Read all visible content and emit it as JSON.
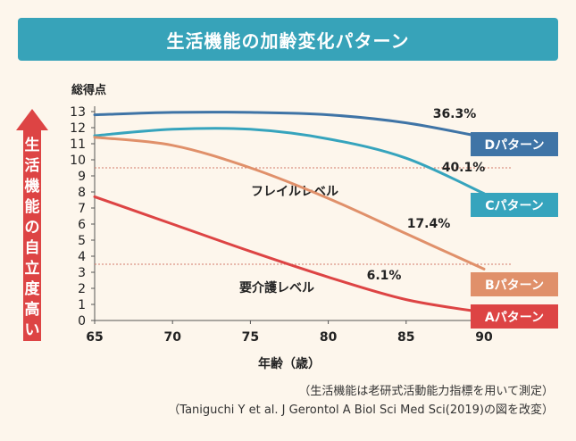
{
  "title": "生活機能の加齢変化パターン",
  "notes": [
    "（生活機能は老研式活動能力指標を用いて測定）",
    "（Taniguchi Y et al. J Gerontol A Biol Sci Med Sci(2019)の図を改変）"
  ],
  "colors": {
    "title_bg": "#37a3b9",
    "D": "#3f74a6",
    "C": "#36a4bd",
    "B": "#e0906a",
    "A": "#dd4444",
    "arrow": "#dd4444",
    "reference": "#d47a6a"
  },
  "chart_data": {
    "type": "line",
    "ylabel": "総得点",
    "xlabel": "年齢（歳）",
    "y_axis_title": "生活機能の自立度高い",
    "xlim": [
      65,
      90
    ],
    "ylim": [
      0,
      13
    ],
    "xticks": [
      65,
      70,
      75,
      80,
      85,
      90
    ],
    "yticks": [
      0,
      1,
      2,
      3,
      4,
      5,
      6,
      7,
      8,
      9,
      10,
      11,
      12,
      13
    ],
    "reference_lines": [
      {
        "value": 9.5,
        "label": "フレイルレベル"
      },
      {
        "value": 3.5,
        "label": "要介護レベル"
      }
    ],
    "series": [
      {
        "key": "D",
        "name": "Dパターン",
        "percent": "36.3%",
        "x": [
          65,
          70,
          75,
          80,
          85,
          90
        ],
        "y": [
          12.8,
          12.95,
          12.95,
          12.8,
          12.3,
          11.4
        ]
      },
      {
        "key": "C",
        "name": "Cパターン",
        "percent": "40.1%",
        "x": [
          65,
          70,
          75,
          80,
          85,
          90
        ],
        "y": [
          11.5,
          11.9,
          11.9,
          11.3,
          10.1,
          7.9
        ]
      },
      {
        "key": "B",
        "name": "Bパターン",
        "percent": "17.4%",
        "x": [
          65,
          70,
          75,
          80,
          85,
          90
        ],
        "y": [
          11.4,
          10.9,
          9.5,
          7.6,
          5.4,
          3.2
        ]
      },
      {
        "key": "A",
        "name": "Aパターン",
        "percent": "6.1%",
        "x": [
          65,
          70,
          75,
          80,
          85,
          90
        ],
        "y": [
          7.7,
          6.0,
          4.3,
          2.7,
          1.3,
          0.5
        ]
      }
    ]
  }
}
